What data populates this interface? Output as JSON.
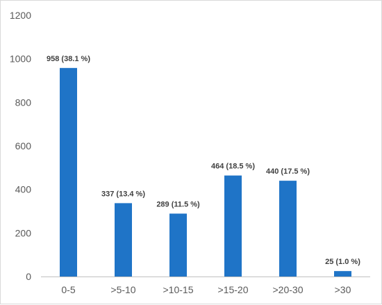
{
  "chart_data": {
    "type": "bar",
    "title": "",
    "xlabel": "",
    "ylabel": "",
    "categories": [
      "0-5",
      ">5-10",
      ">10-15",
      ">15-20",
      ">20-30",
      ">30"
    ],
    "values": [
      958,
      337,
      289,
      464,
      440,
      25
    ],
    "data_labels": [
      "958 (38.1 %)",
      "337 (13.4 %)",
      "289 (11.5 %)",
      "464 (18.5 %)",
      "440 (17.5 %)",
      "25 (1.0 %)"
    ],
    "ylim": [
      0,
      1200
    ],
    "yticks": [
      0,
      200,
      400,
      600,
      800,
      1000,
      1200
    ],
    "grid": false,
    "legend": "none",
    "bar_color": "#1f74c7",
    "axis_color": "#bfbfbf"
  }
}
